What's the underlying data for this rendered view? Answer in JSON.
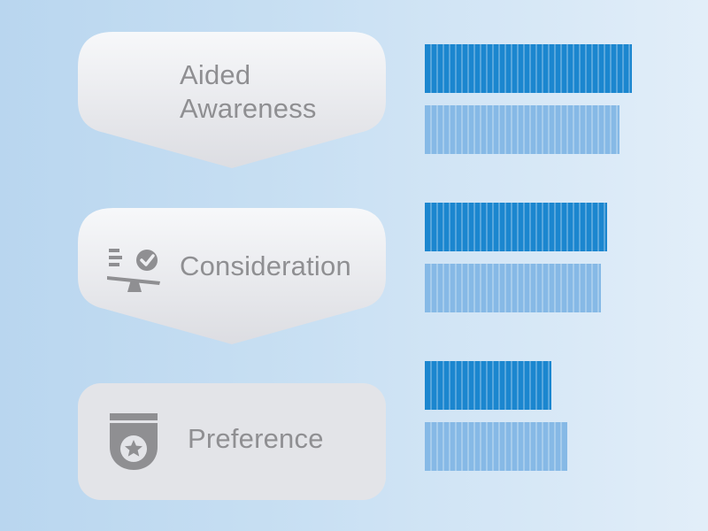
{
  "colors": {
    "primary_bar": "#1b86cf",
    "secondary_bar": "#86b9e6",
    "card_top": "#f6f7f9",
    "card_bottom": "#dedfe3",
    "icon": "#8f8f92"
  },
  "stages": [
    {
      "label_line1": "Aided",
      "label_line2": "Awareness",
      "icon": ""
    },
    {
      "label": "Consideration",
      "icon": "scale-check-icon"
    },
    {
      "label": "Preference",
      "icon": "star-badge-icon"
    }
  ],
  "chart_data": {
    "type": "bar",
    "orientation": "horizontal",
    "categories": [
      "Aided Awareness",
      "Consideration",
      "Preference"
    ],
    "series": [
      {
        "values": [
          100,
          88,
          61
        ]
      },
      {
        "values": [
          94,
          85,
          69
        ]
      }
    ],
    "xlim": [
      0,
      100
    ],
    "grid": false
  }
}
